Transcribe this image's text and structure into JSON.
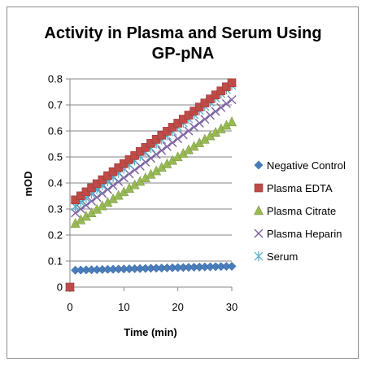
{
  "chart_data": {
    "type": "scatter",
    "title_lines": [
      "Activity in Plasma and Serum Using",
      "GP-pNA"
    ],
    "xlabel": "Time (min)",
    "ylabel": "mOD",
    "xlim": [
      0,
      30
    ],
    "ylim": [
      0,
      0.8
    ],
    "x_ticks": [
      "0",
      "10",
      "20",
      "30"
    ],
    "y_ticks": [
      "0",
      "0.1",
      "0.2",
      "0.3",
      "0.4",
      "0.5",
      "0.6",
      "0.7",
      "0.8"
    ],
    "grid": "horizontal",
    "legend_position": "right",
    "series": [
      {
        "name": "Negative Control",
        "marker": "diamond",
        "color": "#4a7ebb",
        "start": [
          0,
          0
        ],
        "first": 0.065,
        "last": 0.08
      },
      {
        "name": "Plasma EDTA",
        "marker": "square",
        "color": "#be4b48",
        "start": [
          0,
          0
        ],
        "first": 0.335,
        "last": 0.785
      },
      {
        "name": "Plasma Citrate",
        "marker": "triangle",
        "color": "#98b954",
        "start": [
          0,
          0
        ],
        "first": 0.245,
        "last": 0.635
      },
      {
        "name": "Plasma Heparin",
        "marker": "x",
        "color": "#7d60a0",
        "start": [
          0,
          0
        ],
        "first": 0.285,
        "last": 0.72
      },
      {
        "name": "Serum",
        "marker": "star",
        "color": "#4bacc6",
        "start": [
          0,
          0
        ],
        "first": 0.31,
        "last": 0.775
      }
    ],
    "x_step": 1,
    "x_first": 1,
    "x_last": 30
  }
}
